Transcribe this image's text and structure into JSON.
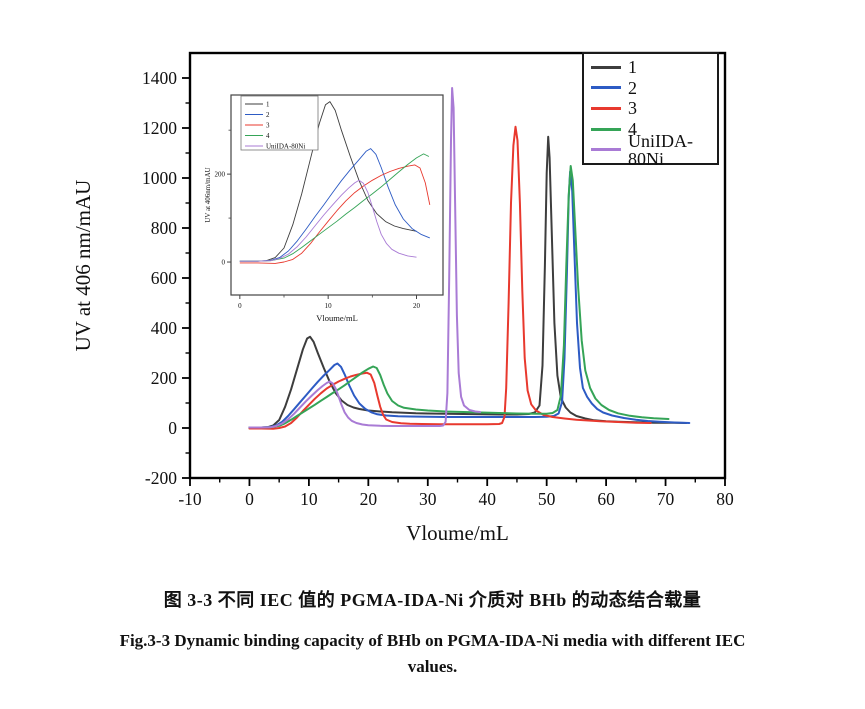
{
  "page": {
    "background": "#ffffff"
  },
  "captions": {
    "zh": "图 3-3 不同 IEC 值的 PGMA-IDA-Ni 介质对 BHb 的动态结合载量",
    "en_line1": "Fig.3-3 Dynamic binding capacity of BHb on PGMA-IDA-Ni media with different IEC",
    "en_line2": "values."
  },
  "chart_data": {
    "type": "line",
    "title": "",
    "xlabel": "Vloume/mL",
    "ylabel": "UV at 406 nm/mAU",
    "xlim": [
      -10,
      80
    ],
    "ylim": [
      -200,
      1500
    ],
    "xticks": [
      -10,
      0,
      10,
      20,
      30,
      40,
      50,
      60,
      70,
      80
    ],
    "yticks": [
      -200,
      0,
      200,
      400,
      600,
      800,
      1000,
      1200,
      1400
    ],
    "grid": false,
    "legend_position": "top-right",
    "legend": [
      "1",
      "2",
      "3",
      "4",
      "UniIDA-80Ni"
    ],
    "series": [
      {
        "name": "1",
        "color": "#3d3d3d",
        "points": [
          [
            0,
            2
          ],
          [
            2,
            2
          ],
          [
            3,
            3
          ],
          [
            4,
            10
          ],
          [
            5,
            32
          ],
          [
            6,
            85
          ],
          [
            7,
            155
          ],
          [
            8,
            235
          ],
          [
            9,
            315
          ],
          [
            9.7,
            358
          ],
          [
            10.2,
            365
          ],
          [
            10.8,
            345
          ],
          [
            11.5,
            300
          ],
          [
            12.5,
            240
          ],
          [
            13.5,
            185
          ],
          [
            14.5,
            140
          ],
          [
            15.5,
            110
          ],
          [
            16.5,
            92
          ],
          [
            17.5,
            82
          ],
          [
            18.5,
            76
          ],
          [
            20,
            70
          ],
          [
            22,
            66
          ],
          [
            24,
            63
          ],
          [
            26,
            61
          ],
          [
            28,
            59
          ],
          [
            30,
            58
          ],
          [
            33,
            57
          ],
          [
            36,
            56
          ],
          [
            39,
            55
          ],
          [
            42,
            54
          ],
          [
            45,
            54
          ],
          [
            47,
            56
          ],
          [
            48,
            62
          ],
          [
            48.8,
            90
          ],
          [
            49.3,
            250
          ],
          [
            49.7,
            650
          ],
          [
            50,
            1020
          ],
          [
            50.25,
            1165
          ],
          [
            50.5,
            1080
          ],
          [
            50.9,
            750
          ],
          [
            51.3,
            420
          ],
          [
            51.8,
            210
          ],
          [
            52.4,
            120
          ],
          [
            53.2,
            82
          ],
          [
            54,
            62
          ],
          [
            55,
            48
          ],
          [
            56.5,
            38
          ],
          [
            58,
            31
          ],
          [
            60,
            27
          ],
          [
            62,
            25
          ],
          [
            65,
            23
          ],
          [
            68,
            21
          ],
          [
            71,
            21
          ],
          [
            73.5,
            20
          ]
        ]
      },
      {
        "name": "2",
        "color": "#2d5bc4",
        "points": [
          [
            0,
            2
          ],
          [
            2,
            2
          ],
          [
            3.5,
            4
          ],
          [
            4.5,
            10
          ],
          [
            5.5,
            25
          ],
          [
            6.5,
            48
          ],
          [
            7.5,
            75
          ],
          [
            8.5,
            103
          ],
          [
            9.5,
            130
          ],
          [
            10.5,
            158
          ],
          [
            11.5,
            185
          ],
          [
            12.5,
            210
          ],
          [
            13.5,
            233
          ],
          [
            14.3,
            252
          ],
          [
            14.8,
            258
          ],
          [
            15.4,
            245
          ],
          [
            16,
            215
          ],
          [
            16.8,
            170
          ],
          [
            17.6,
            130
          ],
          [
            18.5,
            98
          ],
          [
            19.5,
            76
          ],
          [
            20.5,
            63
          ],
          [
            21.5,
            55
          ],
          [
            23,
            50
          ],
          [
            25,
            47
          ],
          [
            27,
            46
          ],
          [
            30,
            45
          ],
          [
            33,
            44
          ],
          [
            36,
            44
          ],
          [
            39,
            44
          ],
          [
            42,
            44
          ],
          [
            45,
            44
          ],
          [
            48,
            44
          ],
          [
            50,
            45
          ],
          [
            51.2,
            48
          ],
          [
            52,
            58
          ],
          [
            52.6,
            105
          ],
          [
            53,
            280
          ],
          [
            53.4,
            620
          ],
          [
            53.7,
            920
          ],
          [
            53.95,
            1025
          ],
          [
            54.3,
            950
          ],
          [
            54.7,
            680
          ],
          [
            55.1,
            420
          ],
          [
            55.6,
            240
          ],
          [
            56.1,
            160
          ],
          [
            56.8,
            125
          ],
          [
            57.6,
            98
          ],
          [
            58.5,
            76
          ],
          [
            59.5,
            62
          ],
          [
            61,
            50
          ],
          [
            63,
            40
          ],
          [
            65,
            33
          ],
          [
            67,
            28
          ],
          [
            69,
            25
          ],
          [
            71.5,
            22
          ],
          [
            74,
            20
          ]
        ]
      },
      {
        "name": "3",
        "color": "#e8392e",
        "points": [
          [
            0,
            -2
          ],
          [
            2,
            -2
          ],
          [
            4,
            -3
          ],
          [
            5,
            0
          ],
          [
            6,
            6
          ],
          [
            7,
            20
          ],
          [
            8,
            42
          ],
          [
            9,
            68
          ],
          [
            10,
            93
          ],
          [
            11,
            117
          ],
          [
            12,
            139
          ],
          [
            13,
            158
          ],
          [
            14,
            173
          ],
          [
            15,
            186
          ],
          [
            16,
            197
          ],
          [
            17,
            206
          ],
          [
            18,
            213
          ],
          [
            19,
            218
          ],
          [
            19.8,
            221
          ],
          [
            20.4,
            214
          ],
          [
            21,
            180
          ],
          [
            21.5,
            130
          ],
          [
            22,
            85
          ],
          [
            22.5,
            52
          ],
          [
            23,
            34
          ],
          [
            24,
            24
          ],
          [
            25.5,
            19
          ],
          [
            27,
            17
          ],
          [
            29,
            16
          ],
          [
            32,
            15
          ],
          [
            35,
            15
          ],
          [
            38,
            15
          ],
          [
            40,
            15
          ],
          [
            42,
            16
          ],
          [
            42.5,
            20
          ],
          [
            42.9,
            45
          ],
          [
            43.2,
            160
          ],
          [
            43.6,
            500
          ],
          [
            44,
            900
          ],
          [
            44.4,
            1130
          ],
          [
            44.75,
            1205
          ],
          [
            45.1,
            1150
          ],
          [
            45.5,
            900
          ],
          [
            45.9,
            550
          ],
          [
            46.3,
            280
          ],
          [
            46.8,
            150
          ],
          [
            47.4,
            95
          ],
          [
            48.2,
            70
          ],
          [
            49.5,
            52
          ],
          [
            51,
            44
          ],
          [
            53,
            38
          ],
          [
            55,
            33
          ],
          [
            57,
            30
          ],
          [
            59,
            27
          ],
          [
            61,
            25
          ],
          [
            63,
            23
          ],
          [
            65,
            21
          ],
          [
            67.5,
            20
          ]
        ]
      },
      {
        "name": "4",
        "color": "#35a457",
        "points": [
          [
            0,
            2
          ],
          [
            2,
            2
          ],
          [
            3.5,
            3
          ],
          [
            5,
            9
          ],
          [
            6,
            19
          ],
          [
            7,
            33
          ],
          [
            8,
            48
          ],
          [
            9,
            63
          ],
          [
            10,
            78
          ],
          [
            11,
            93
          ],
          [
            12,
            109
          ],
          [
            13,
            124
          ],
          [
            14,
            140
          ],
          [
            15,
            155
          ],
          [
            16,
            171
          ],
          [
            17,
            188
          ],
          [
            18,
            205
          ],
          [
            19,
            222
          ],
          [
            20,
            237
          ],
          [
            20.8,
            246
          ],
          [
            21.4,
            240
          ],
          [
            22,
            212
          ],
          [
            22.6,
            172
          ],
          [
            23.2,
            138
          ],
          [
            24,
            108
          ],
          [
            25,
            90
          ],
          [
            26,
            81
          ],
          [
            28,
            74
          ],
          [
            30,
            70
          ],
          [
            33,
            66
          ],
          [
            36,
            64
          ],
          [
            39,
            62
          ],
          [
            42,
            60
          ],
          [
            45,
            58
          ],
          [
            48,
            57
          ],
          [
            50,
            57
          ],
          [
            51,
            60
          ],
          [
            51.8,
            72
          ],
          [
            52.4,
            130
          ],
          [
            52.9,
            330
          ],
          [
            53.3,
            650
          ],
          [
            53.7,
            930
          ],
          [
            54.05,
            1048
          ],
          [
            54.4,
            990
          ],
          [
            54.8,
            800
          ],
          [
            55.3,
            560
          ],
          [
            55.9,
            350
          ],
          [
            56.5,
            230
          ],
          [
            57.3,
            160
          ],
          [
            58.2,
            118
          ],
          [
            59.2,
            92
          ],
          [
            60.5,
            72
          ],
          [
            62,
            59
          ],
          [
            64,
            49
          ],
          [
            66,
            43
          ],
          [
            68,
            39
          ],
          [
            70.5,
            36
          ]
        ]
      },
      {
        "name": "UniIDA-80Ni",
        "color": "#a97bd5",
        "points": [
          [
            0,
            2
          ],
          [
            2,
            2
          ],
          [
            3.5,
            3
          ],
          [
            4.5,
            8
          ],
          [
            5.5,
            18
          ],
          [
            6.5,
            35
          ],
          [
            7.5,
            57
          ],
          [
            8.5,
            82
          ],
          [
            9.5,
            107
          ],
          [
            10.5,
            130
          ],
          [
            11.5,
            152
          ],
          [
            12.3,
            168
          ],
          [
            13,
            180
          ],
          [
            13.5,
            186
          ],
          [
            14,
            179
          ],
          [
            14.5,
            158
          ],
          [
            15,
            126
          ],
          [
            15.5,
            92
          ],
          [
            16,
            63
          ],
          [
            16.6,
            42
          ],
          [
            17.2,
            29
          ],
          [
            18,
            20
          ],
          [
            19,
            14
          ],
          [
            20,
            11
          ],
          [
            22,
            9
          ],
          [
            24,
            8
          ],
          [
            26,
            8
          ],
          [
            28,
            8
          ],
          [
            30,
            8
          ],
          [
            32,
            8
          ],
          [
            32.6,
            10
          ],
          [
            33,
            25
          ],
          [
            33.3,
            140
          ],
          [
            33.6,
            600
          ],
          [
            33.9,
            1150
          ],
          [
            34.1,
            1360
          ],
          [
            34.35,
            1280
          ],
          [
            34.6,
            900
          ],
          [
            34.9,
            450
          ],
          [
            35.2,
            220
          ],
          [
            35.6,
            125
          ],
          [
            36.1,
            90
          ],
          [
            37,
            72
          ],
          [
            38,
            66
          ],
          [
            38.8,
            64
          ]
        ]
      }
    ],
    "inset": {
      "xlabel": "Vloume/mL",
      "ylabel": "UV at 406nm/mAU",
      "xlim": [
        -1,
        23
      ],
      "ylim": [
        -75,
        380
      ],
      "xticks": [
        0,
        10,
        20
      ],
      "yticks": [
        0,
        200
      ],
      "x_max_data": 21.6,
      "legend": [
        "1",
        "2",
        "3",
        "4",
        "UniIDA-80Ni"
      ]
    }
  }
}
